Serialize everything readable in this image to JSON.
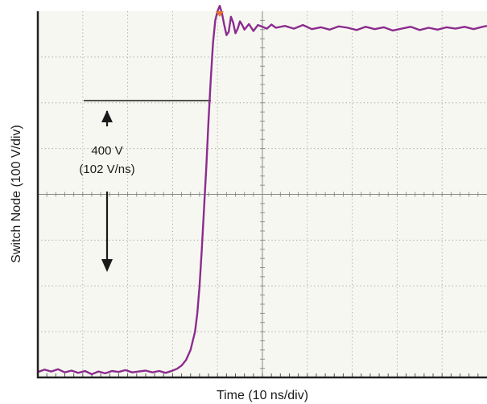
{
  "chart_data": {
    "type": "line",
    "title": "",
    "xlabel": "Time (10 ns/div)",
    "ylabel": "Switch Node (100 V/div)",
    "x_divisions": 10,
    "y_divisions": 8,
    "xlim": [
      0,
      100
    ],
    "ylim": [
      -400,
      400
    ],
    "grid": true,
    "grid_style": "dotted",
    "trigger_marker_x": 40.5,
    "colors": {
      "trace": "#8b2c8e",
      "trigger_marker": "#e8702a",
      "grid": "#a0a0a0",
      "plot_bg": "#f7f7f1",
      "frame": "#222222"
    },
    "annotations": [
      {
        "id": "amplitude",
        "text_lines": [
          "400 V",
          "(102 V/ns)"
        ],
        "x": 15,
        "y": 0
      }
    ],
    "series": [
      {
        "x": [
          0,
          1.5,
          3,
          4.5,
          6,
          7.5,
          9,
          10.5,
          12,
          13.5,
          15,
          16.5,
          18,
          19.5,
          21,
          22.5,
          24,
          25.5,
          27,
          28.5,
          30,
          31,
          32,
          33,
          34,
          35,
          35.5,
          36,
          36.5,
          37,
          37.5,
          38,
          38.5,
          39,
          39.5,
          40,
          40.5,
          41,
          41.5,
          42,
          42.5,
          43,
          43.5,
          44,
          44.5,
          45,
          45.5,
          46,
          47,
          48,
          49,
          50,
          51,
          52,
          53,
          55,
          57,
          59,
          61,
          63,
          65,
          67,
          69,
          71,
          73,
          75,
          77,
          79,
          81,
          83,
          85,
          87,
          89,
          91,
          93,
          95,
          97,
          99,
          100
        ],
        "y": [
          -388,
          -383,
          -387,
          -382,
          -389,
          -385,
          -390,
          -386,
          -393,
          -387,
          -391,
          -386,
          -388,
          -384,
          -389,
          -387,
          -385,
          -389,
          -386,
          -390,
          -385,
          -381,
          -374,
          -362,
          -340,
          -300,
          -260,
          -200,
          -120,
          -30,
          60,
          160,
          250,
          330,
          380,
          400,
          412,
          395,
          370,
          348,
          355,
          388,
          375,
          352,
          362,
          378,
          370,
          360,
          372,
          357,
          370,
          366,
          362,
          371,
          364,
          368,
          362,
          370,
          361,
          365,
          360,
          367,
          364,
          359,
          366,
          361,
          365,
          358,
          362,
          366,
          359,
          364,
          360,
          365,
          362,
          366,
          361,
          366,
          368
        ]
      }
    ]
  }
}
